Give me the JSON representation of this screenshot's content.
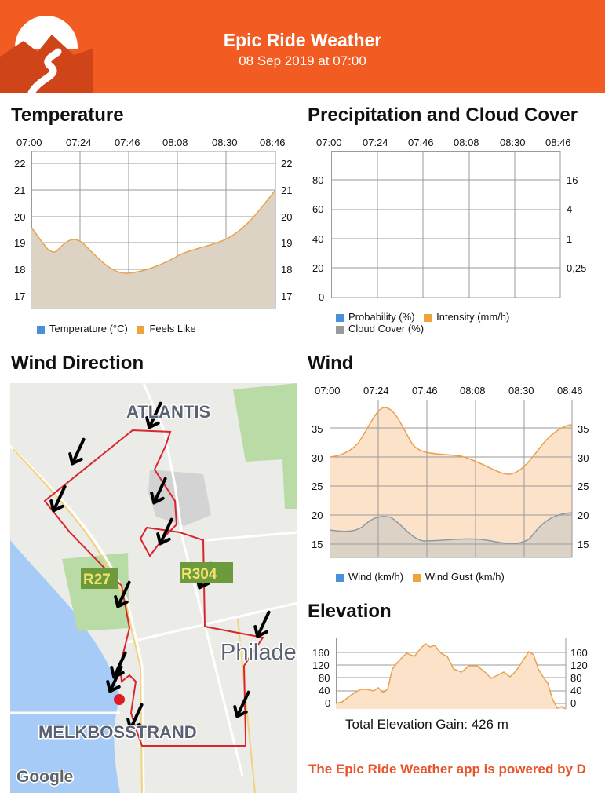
{
  "header": {
    "title": "Epic Ride Weather",
    "date": "08 Sep 2019 at 07:00",
    "logo_icon": "mountain-road-logo-icon",
    "color": "#f25c22"
  },
  "temperature": {
    "title": "Temperature",
    "times": [
      "07:00",
      "07:24",
      "07:46",
      "08:08",
      "08:30",
      "08:46"
    ],
    "yticks": [
      "22",
      "21",
      "20",
      "19",
      "18",
      "17"
    ],
    "legend": [
      "Temperature (°C)",
      "Feels Like"
    ],
    "legend_colors": [
      "#4a90d9",
      "#f0a33a"
    ]
  },
  "precip": {
    "title": "Precipitation and Cloud Cover",
    "times": [
      "07:00",
      "07:24",
      "07:46",
      "08:08",
      "08:30",
      "08:46"
    ],
    "yticks_left": [
      "80",
      "60",
      "40",
      "20",
      "0"
    ],
    "yticks_right": [
      "16",
      "4",
      "1",
      "0,25"
    ],
    "legend": [
      "Probability (%)",
      "Intensity (mm/h)",
      "Cloud Cover (%)"
    ],
    "legend_colors": [
      "#4a90d9",
      "#f0a33a",
      "#999999"
    ]
  },
  "wind_direction": {
    "title": "Wind Direction",
    "labels": {
      "atlantis": "ATLANTIS",
      "r27": "R27",
      "r304": "R304",
      "philadelphia": "Philade",
      "melkbosstrand": "MELKBOSSTRAND",
      "google": "Google"
    }
  },
  "wind": {
    "title": "Wind",
    "times": [
      "07:00",
      "07:24",
      "07:46",
      "08:08",
      "08:30",
      "08:46"
    ],
    "yticks": [
      "35",
      "30",
      "25",
      "20",
      "15"
    ],
    "legend": [
      "Wind (km/h)",
      "Wind Gust (km/h)"
    ],
    "legend_colors": [
      "#4a90d9",
      "#f0a33a"
    ]
  },
  "elevation": {
    "title": "Elevation",
    "yticks": [
      "160",
      "120",
      "80",
      "40",
      "0"
    ],
    "total_gain": "Total Elevation Gain: 426 m"
  },
  "footer": {
    "text": "The Epic Ride Weather app is powered by D"
  }
}
